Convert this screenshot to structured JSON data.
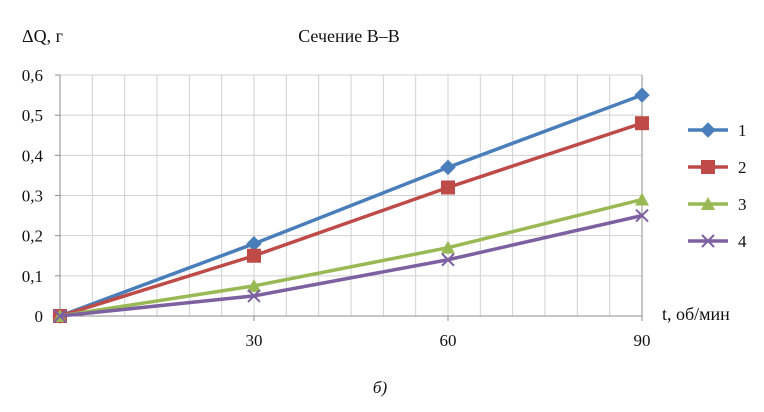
{
  "chart_data": {
    "type": "line",
    "title": "Сечение В–В",
    "ylabel": "ΔQ, г",
    "xlabel": "t, об/мин",
    "x": [
      0,
      30,
      60,
      90
    ],
    "xticks": [
      "30",
      "60",
      "90"
    ],
    "ylim": [
      0,
      0.6
    ],
    "yticks": [
      "0",
      "0,1",
      "0,2",
      "0,3",
      "0,4",
      "0,5",
      "0,6"
    ],
    "grid": true,
    "legend_position": "right",
    "series": [
      {
        "name": "1",
        "color": "#4a7ebb",
        "marker": "diamond",
        "values": [
          0,
          0.18,
          0.37,
          0.55
        ]
      },
      {
        "name": "2",
        "color": "#be4b48",
        "marker": "square",
        "values": [
          0,
          0.15,
          0.32,
          0.48
        ]
      },
      {
        "name": "3",
        "color": "#98b954",
        "marker": "triangle",
        "values": [
          0,
          0.075,
          0.17,
          0.29
        ]
      },
      {
        "name": "4",
        "color": "#7d60a0",
        "marker": "x",
        "values": [
          0,
          0.05,
          0.14,
          0.25
        ]
      }
    ],
    "caption": "б)"
  }
}
